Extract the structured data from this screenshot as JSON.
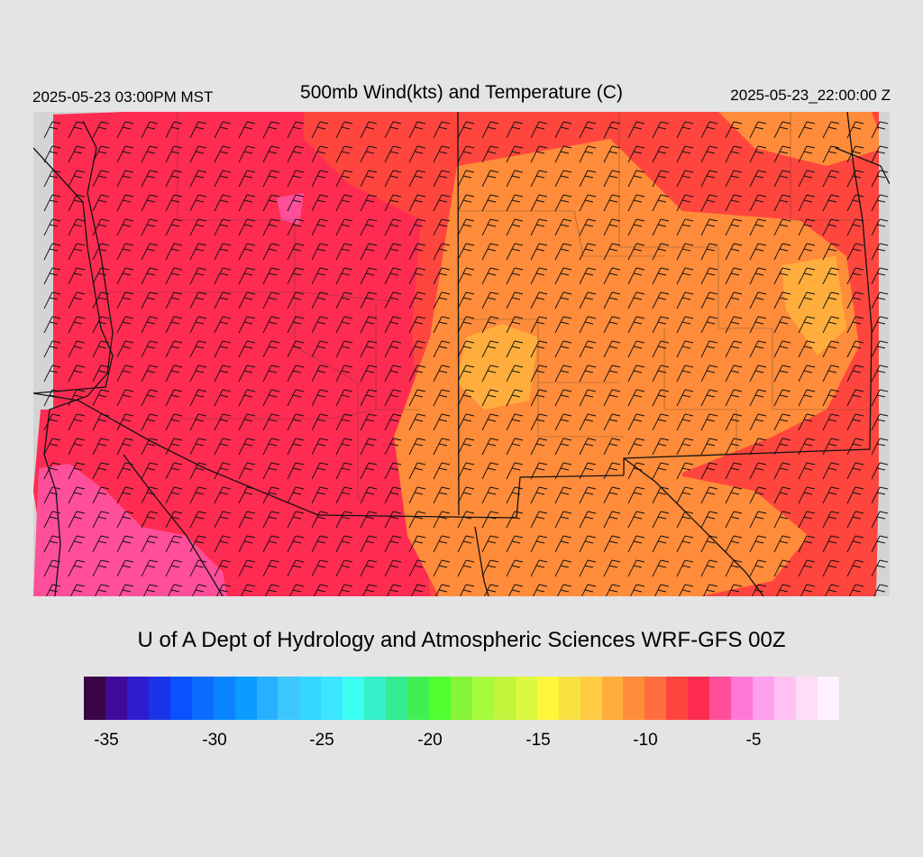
{
  "header": {
    "valid_local": "2025-05-23 03:00PM MST",
    "title": "500mb Wind(kts) and Temperature (C)",
    "valid_utc": "2025-05-23_22:00:00 Z"
  },
  "footer": {
    "credit": "U of A Dept of Hydrology and Atmospheric Sciences WRF-GFS 00Z"
  },
  "colorbar": {
    "colors": [
      "#3a0545",
      "#3f0a9a",
      "#2f1ccf",
      "#1b33e8",
      "#0a52ff",
      "#0a6cff",
      "#0a85ff",
      "#0a9cff",
      "#26b0ff",
      "#3ec6ff",
      "#33d6ff",
      "#3ce6ff",
      "#3cfff2",
      "#34f0c8",
      "#34ea92",
      "#40f050",
      "#50ff30",
      "#86f53a",
      "#a6fb3c",
      "#c0f53c",
      "#dcf840",
      "#fff53a",
      "#fae142",
      "#fecb42",
      "#ffae3e",
      "#ff8c3a",
      "#ff6e3e",
      "#ff463e",
      "#ff2c52",
      "#ff4f9a",
      "#ff78d6",
      "#ffa0ee",
      "#ffc2f2",
      "#ffddf8",
      "#fff0fd"
    ],
    "ticks": [
      "-35",
      "-30",
      "-25",
      "-20",
      "-15",
      "-10",
      "-5"
    ]
  },
  "map": {
    "field": "500mb temperature (C)",
    "colors": {
      "warm_core": "#ff8c3a",
      "mid": "#ff463e",
      "cool": "#ff2c52",
      "coldest": "#ff4f9a",
      "mask": "#d4d4d4"
    }
  }
}
